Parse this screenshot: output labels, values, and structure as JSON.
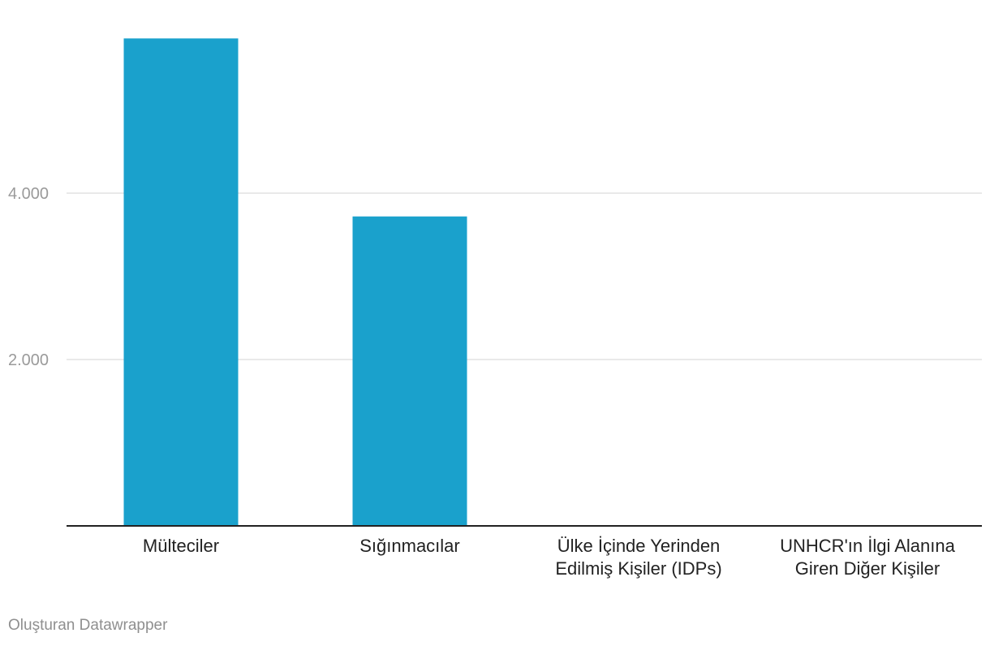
{
  "chart_data": {
    "type": "bar",
    "categories": [
      [
        "Mülteciler"
      ],
      [
        "Sığınmacılar"
      ],
      [
        "Ülke İçinde Yerinden",
        "Edilmiş Kişiler (IDPs)"
      ],
      [
        "UNHCR'ın İlgi Alanına",
        "Giren Diğer Kişiler"
      ]
    ],
    "values": [
      5860,
      3720,
      0,
      0
    ],
    "ylim": [
      0,
      5900
    ],
    "yticks": [
      2000,
      4000
    ],
    "ytick_labels": [
      "2.000",
      "4.000"
    ],
    "grid": true,
    "bar_color": "#1aa1cc"
  },
  "credit": "Oluşturan Datawrapper"
}
